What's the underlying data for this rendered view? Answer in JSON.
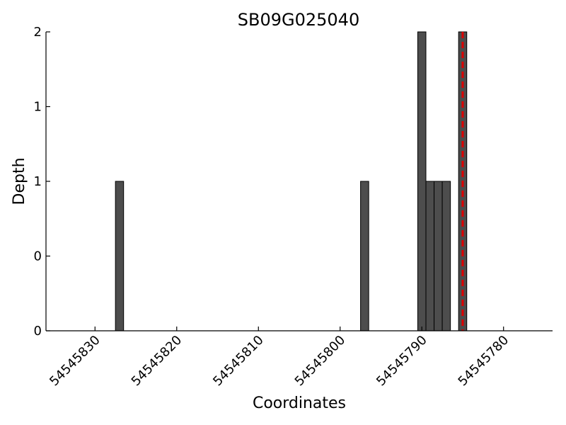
{
  "chart_data": {
    "type": "bar",
    "title": "SB09G025040",
    "xlabel": "Coordinates",
    "ylabel": "Depth",
    "x_axis_reversed": true,
    "xlim": [
      54545836,
      54545774
    ],
    "ylim": [
      0,
      2
    ],
    "x_ticks": [
      54545830,
      54545820,
      54545810,
      54545800,
      54545790,
      54545780
    ],
    "x_tick_labels": [
      "54545830",
      "54545820",
      "54545810",
      "54545800",
      "54545790",
      "54545780"
    ],
    "y_ticks": [
      0,
      0.5,
      1,
      1.5,
      2
    ],
    "y_tick_labels": [
      "0",
      "0",
      "1",
      "1",
      "2"
    ],
    "bar_width": 1,
    "bar_color": "#4d4d4d",
    "bar_edge_color": "#000000",
    "bars": [
      {
        "x": 54545827,
        "value": 1
      },
      {
        "x": 54545797,
        "value": 1
      },
      {
        "x": 54545790,
        "value": 2
      },
      {
        "x": 54545789,
        "value": 1
      },
      {
        "x": 54545788,
        "value": 1
      },
      {
        "x": 54545787,
        "value": 1
      },
      {
        "x": 54545785,
        "value": 2
      }
    ],
    "marker_line": {
      "x": 54545785,
      "color": "#dd0000",
      "style": "dashed"
    },
    "grid": false
  }
}
